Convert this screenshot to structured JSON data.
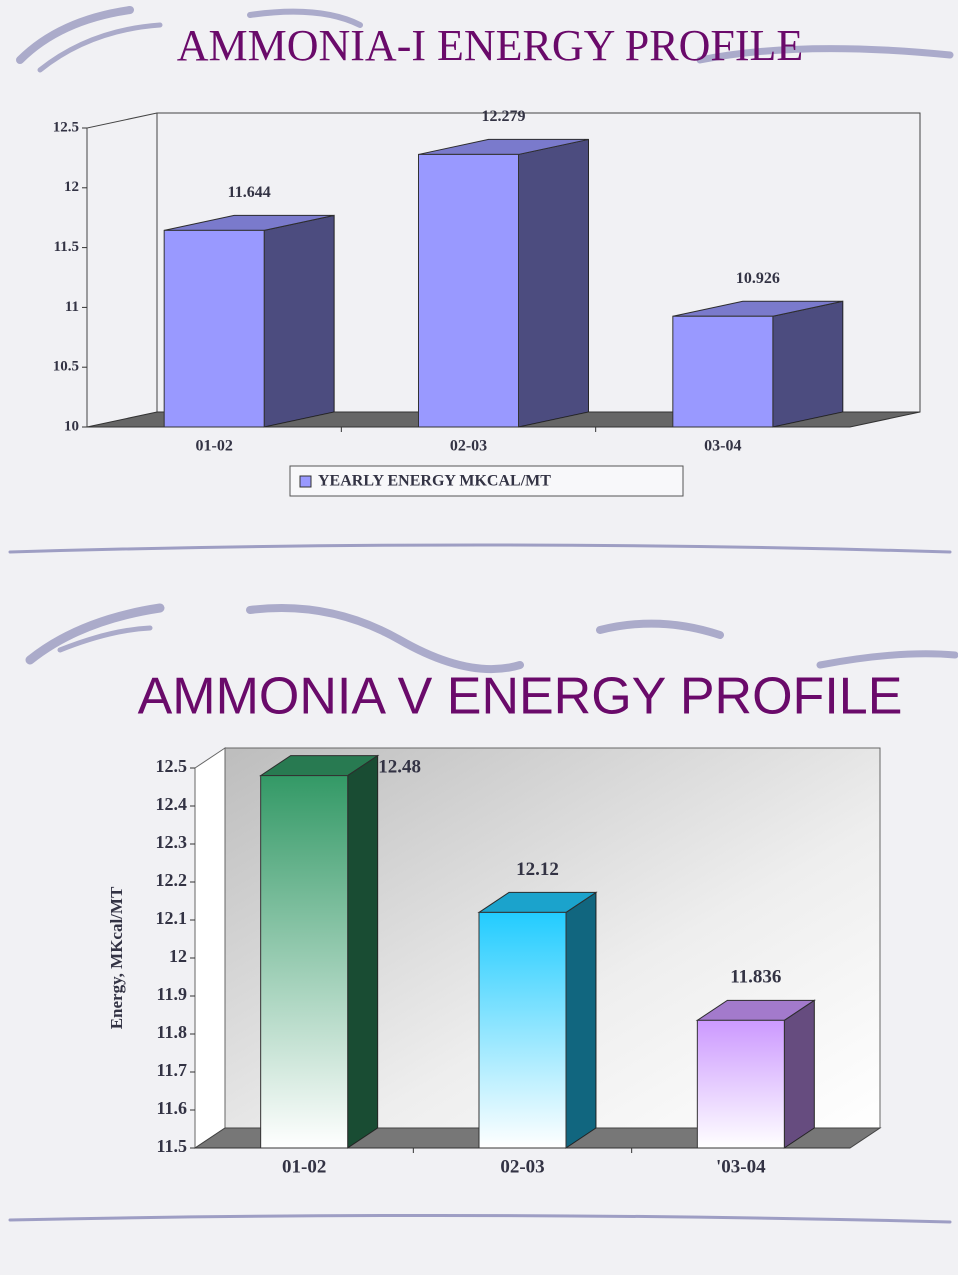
{
  "chart_data": [
    {
      "type": "bar",
      "title": "AMMONIA-I ENERGY PROFILE",
      "categories": [
        "01-02",
        "02-03",
        "03-04"
      ],
      "series": [
        {
          "name": "YEARLY ENERGY MKCAL/MT",
          "color": "#9999ff",
          "values": [
            11.644,
            12.279,
            10.926
          ]
        }
      ],
      "ylim": [
        10,
        12.5
      ],
      "yticks": [
        10,
        10.5,
        11,
        11.5,
        12,
        12.5
      ],
      "legend": "bottom"
    },
    {
      "type": "bar",
      "title": "AMMONIA V ENERGY PROFILE",
      "ylabel": "Energy, MKcal/MT",
      "categories": [
        "01-02",
        "02-03",
        "'03-04"
      ],
      "values": [
        12.48,
        12.12,
        11.836
      ],
      "colors": [
        "#339966",
        "#22ccff",
        "#cc99ff"
      ],
      "ylim": [
        11.5,
        12.5
      ],
      "yticks": [
        11.5,
        11.6,
        11.7,
        11.8,
        11.9,
        12,
        12.1,
        12.2,
        12.3,
        12.4,
        12.5
      ]
    }
  ]
}
